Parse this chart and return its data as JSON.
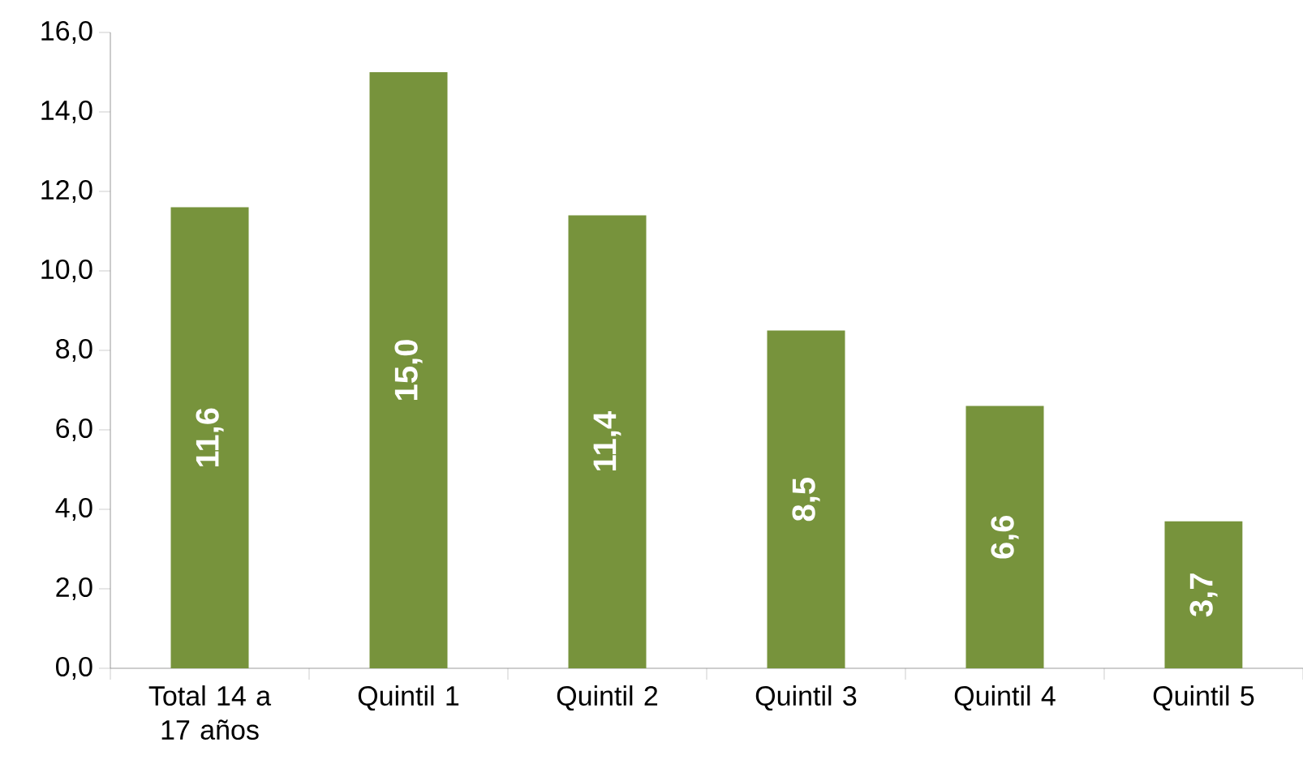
{
  "chart_data": {
    "type": "bar",
    "categories": [
      "Total  14 a 17 años",
      "Quintil 1",
      "Quintil 2",
      "Quintil 3",
      "Quintil 4",
      "Quintil 5"
    ],
    "values": [
      11.6,
      15.0,
      11.4,
      8.5,
      6.6,
      3.7
    ],
    "value_labels": [
      "11,6",
      "15,0",
      "11,4",
      "8,5",
      "6,6",
      "3,7"
    ],
    "color": "#77933c",
    "ylim": [
      0,
      16
    ],
    "yticks": [
      {
        "value": 0,
        "label": "0,0"
      },
      {
        "value": 2,
        "label": "2,0"
      },
      {
        "value": 4,
        "label": "4,0"
      },
      {
        "value": 6,
        "label": "6,0"
      },
      {
        "value": 8,
        "label": "8,0"
      },
      {
        "value": 10,
        "label": "10,0"
      },
      {
        "value": 12,
        "label": "12,0"
      },
      {
        "value": 14,
        "label": "14,0"
      },
      {
        "value": 16,
        "label": "16,0"
      }
    ]
  }
}
